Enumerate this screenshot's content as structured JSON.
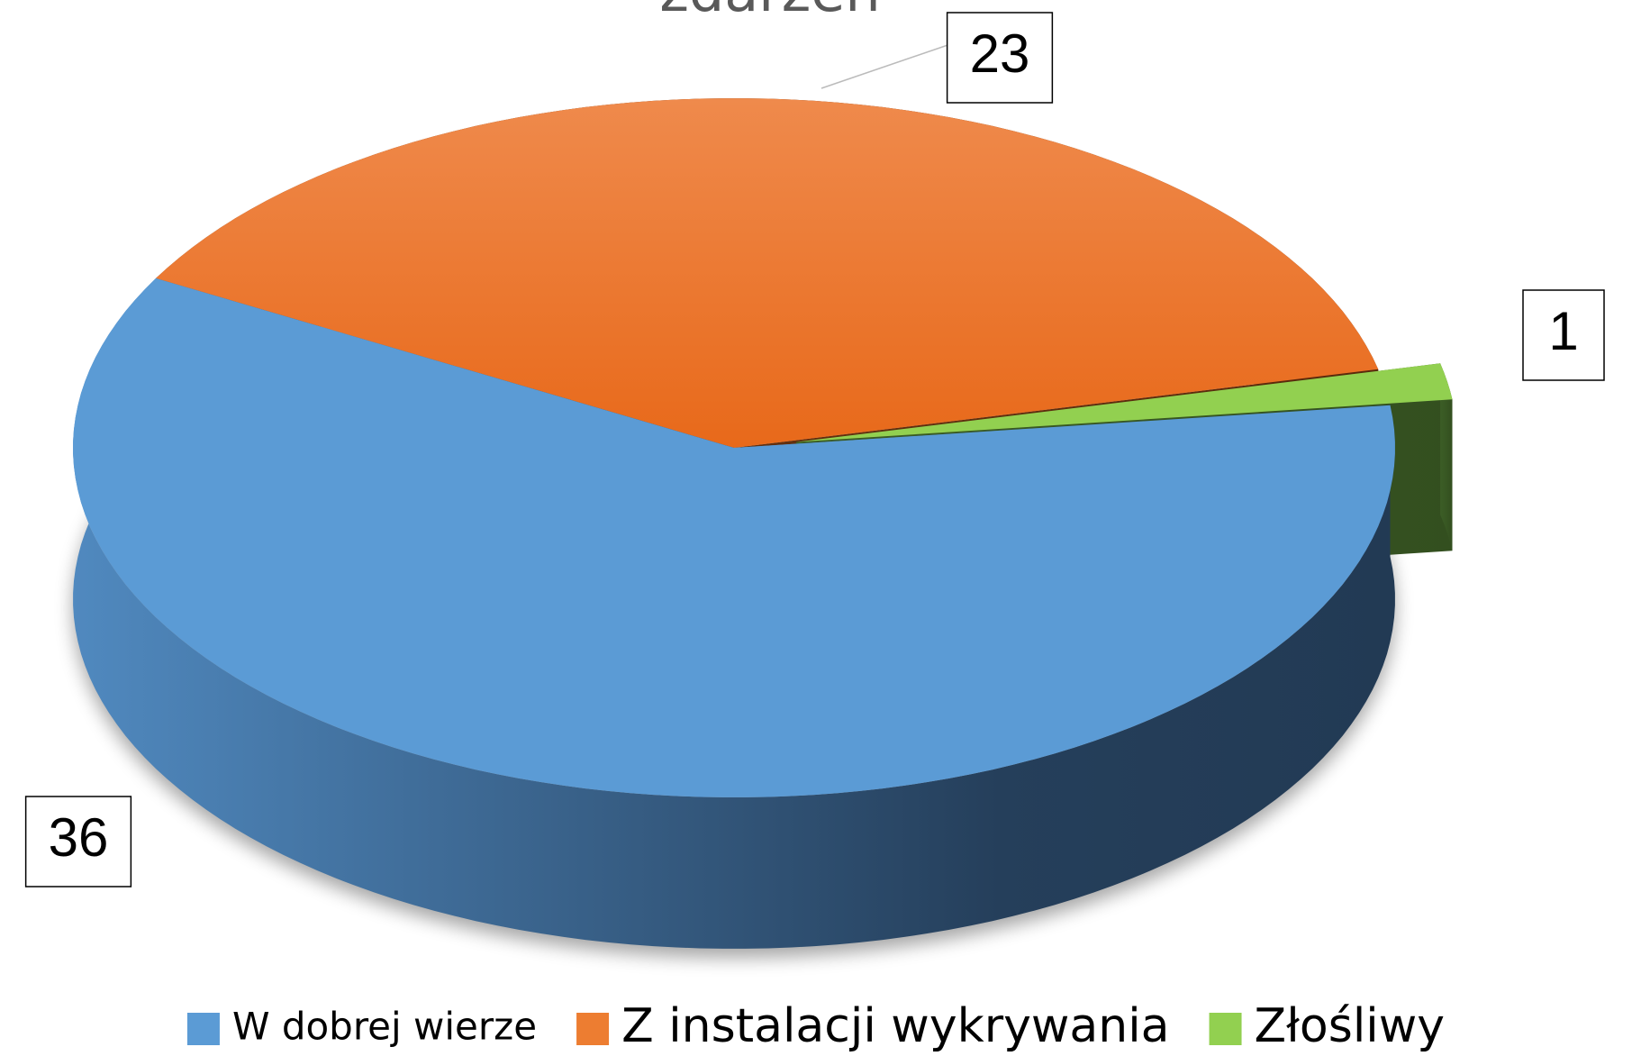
{
  "chart_data": {
    "type": "pie3d",
    "title": "zdarzeń",
    "categories": [
      "W dobrej wierze",
      "Z instalacji wykrywania",
      "Złośliwy"
    ],
    "values": [
      36,
      23,
      1
    ],
    "colors": [
      "#5b9bd5",
      "#ed7d31",
      "#92d050"
    ],
    "legend": "bottom"
  }
}
